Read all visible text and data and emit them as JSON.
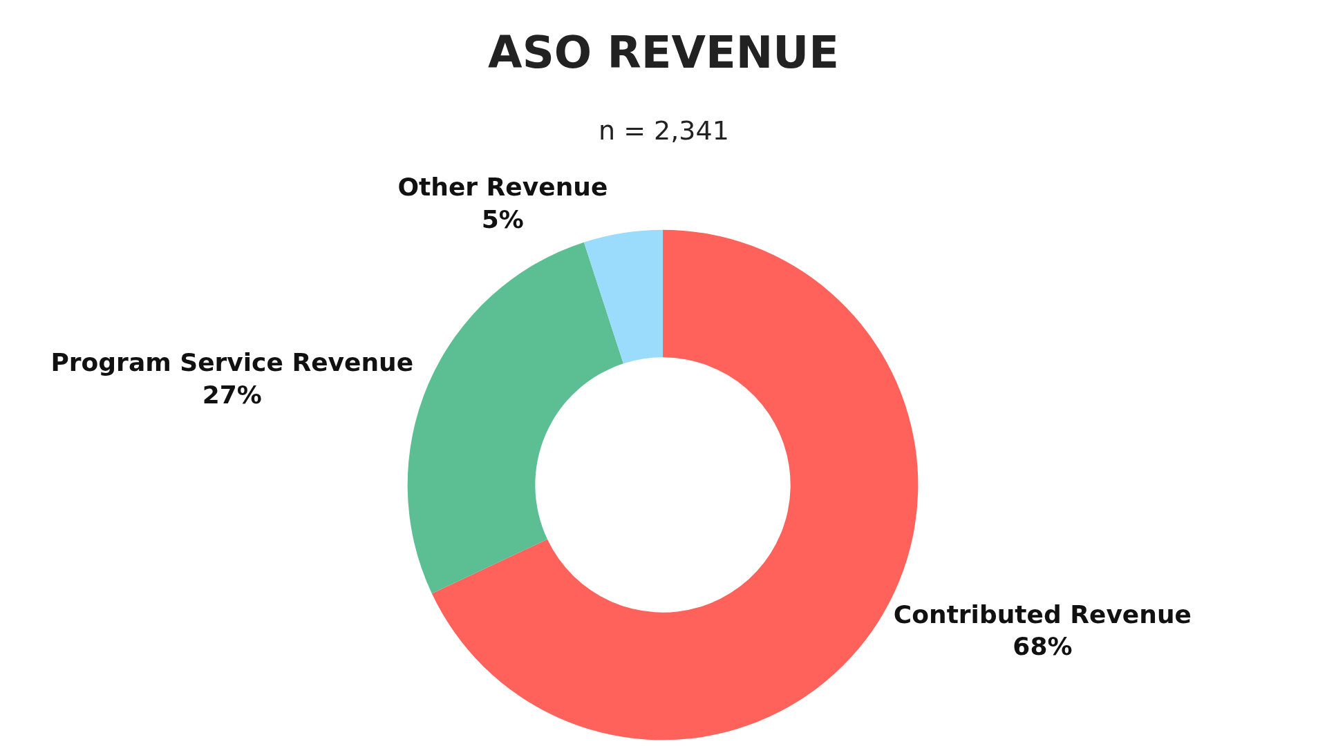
{
  "chart_data": {
    "type": "donut",
    "title": "ASO REVENUE",
    "subtitle": "n = 2,341",
    "categories": [
      "Contributed Revenue",
      "Program Service Revenue",
      "Other Revenue"
    ],
    "values": [
      68,
      27,
      5
    ],
    "colors": [
      "#ff625b",
      "#5bbf93",
      "#9bdcfd"
    ],
    "value_labels": [
      "68%",
      "27%",
      "5%"
    ],
    "legend": false
  }
}
